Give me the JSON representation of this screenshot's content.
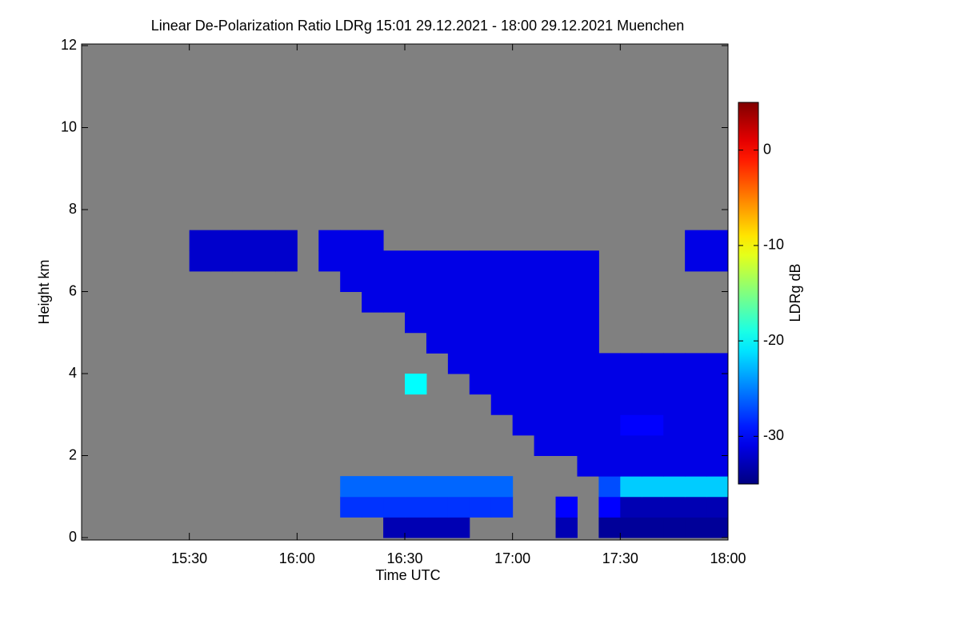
{
  "chart_data": {
    "type": "heatmap",
    "title": "Linear De-Polarization Ratio LDRg   15:01 29.12.2021 - 18:00 29.12.2021 Muenchen",
    "xlabel": "Time UTC",
    "ylabel": "Height km",
    "colorbar_label": "LDRg dB",
    "colorscale": "jet",
    "background_color": "#808080",
    "xlim": [
      15.0,
      18.0
    ],
    "xticks": [
      {
        "value": 15.5,
        "label": "15:30"
      },
      {
        "value": 16.0,
        "label": "16:00"
      },
      {
        "value": 16.5,
        "label": "16:30"
      },
      {
        "value": 17.0,
        "label": "17:00"
      },
      {
        "value": 17.5,
        "label": "17:30"
      },
      {
        "value": 18.0,
        "label": "18:00"
      }
    ],
    "ylim": [
      0,
      12
    ],
    "yticks": [
      0,
      2,
      4,
      6,
      8,
      10,
      12
    ],
    "zlim": [
      -35,
      5
    ],
    "zticks": [
      0,
      -10,
      -20,
      -30
    ],
    "xbins": [
      15.0,
      15.1,
      15.2,
      15.3,
      15.4,
      15.5,
      15.6,
      15.7,
      15.8,
      15.9,
      16.0,
      16.1,
      16.2,
      16.3,
      16.4,
      16.5,
      16.6,
      16.7,
      16.8,
      16.9,
      17.0,
      17.1,
      17.2,
      17.3,
      17.4,
      17.5,
      17.6,
      17.7,
      17.8,
      17.9,
      18.0
    ],
    "ybins": [
      0,
      0.5,
      1,
      1.5,
      2,
      2.5,
      3,
      3.5,
      4,
      4.5,
      5,
      5.5,
      6,
      6.5,
      7,
      7.5,
      8,
      8.5,
      9,
      9.5,
      10,
      10.5,
      11,
      11.5,
      12
    ],
    "z": [
      [
        null,
        null,
        null,
        null,
        null,
        null,
        null,
        null,
        null,
        null,
        null,
        null,
        null,
        null,
        -33,
        -33,
        -33,
        -33,
        null,
        null,
        null,
        null,
        -33,
        null,
        -34,
        -34,
        -34,
        -34,
        -34,
        -34
      ],
      [
        null,
        null,
        null,
        null,
        null,
        null,
        null,
        null,
        null,
        null,
        null,
        null,
        -28,
        -28,
        -28,
        -28,
        -28,
        -28,
        -28,
        -28,
        null,
        null,
        -30,
        null,
        -30,
        -33,
        -33,
        -33,
        -33,
        -33
      ],
      [
        null,
        null,
        null,
        null,
        null,
        null,
        null,
        null,
        null,
        null,
        null,
        null,
        -26,
        -26,
        -26,
        -26,
        -26,
        -26,
        -26,
        -26,
        null,
        null,
        null,
        null,
        -27,
        -22,
        -22,
        -22,
        -22,
        -22
      ],
      [
        null,
        null,
        null,
        null,
        null,
        null,
        null,
        null,
        null,
        null,
        null,
        null,
        null,
        null,
        null,
        null,
        null,
        null,
        null,
        null,
        null,
        null,
        null,
        -31,
        -31,
        -31,
        -31,
        -31,
        -31,
        -31
      ],
      [
        null,
        null,
        null,
        null,
        null,
        null,
        null,
        null,
        null,
        null,
        null,
        null,
        null,
        null,
        null,
        null,
        null,
        null,
        null,
        null,
        null,
        -31,
        -31,
        -31,
        -31,
        -31,
        -31,
        -31,
        -31,
        -31
      ],
      [
        null,
        null,
        null,
        null,
        null,
        null,
        null,
        null,
        null,
        null,
        null,
        null,
        null,
        null,
        null,
        null,
        null,
        null,
        null,
        null,
        -31,
        -31,
        -31,
        -31,
        -31,
        -30,
        -30,
        -31,
        -31,
        -31
      ],
      [
        null,
        null,
        null,
        null,
        null,
        null,
        null,
        null,
        null,
        null,
        null,
        null,
        null,
        null,
        null,
        null,
        null,
        null,
        null,
        -31,
        -31,
        -31,
        -31,
        -31,
        -31,
        -31,
        -31,
        -31,
        -31,
        -31
      ],
      [
        null,
        null,
        null,
        null,
        null,
        null,
        null,
        null,
        null,
        null,
        null,
        null,
        null,
        null,
        null,
        -20,
        null,
        null,
        -31,
        -31,
        -31,
        -31,
        -31,
        -31,
        -31,
        -31,
        -31,
        -31,
        -31,
        -31
      ],
      [
        null,
        null,
        null,
        null,
        null,
        null,
        null,
        null,
        null,
        null,
        null,
        null,
        null,
        null,
        null,
        null,
        null,
        -31,
        -31,
        -31,
        -31,
        -31,
        -31,
        -31,
        -31,
        -31,
        -31,
        -31,
        -31,
        -31
      ],
      [
        null,
        null,
        null,
        null,
        null,
        null,
        null,
        null,
        null,
        null,
        null,
        null,
        null,
        null,
        null,
        null,
        -31,
        -31,
        -31,
        -31,
        -31,
        -31,
        -31,
        -31,
        null,
        null,
        null,
        null,
        null,
        null
      ],
      [
        null,
        null,
        null,
        null,
        null,
        null,
        null,
        null,
        null,
        null,
        null,
        null,
        null,
        null,
        null,
        -31,
        -31,
        -31,
        -31,
        -31,
        -31,
        -31,
        -31,
        -31,
        null,
        null,
        null,
        null,
        null,
        null
      ],
      [
        null,
        null,
        null,
        null,
        null,
        null,
        null,
        null,
        null,
        null,
        null,
        null,
        null,
        -31,
        -31,
        -31,
        -31,
        -31,
        -31,
        -31,
        -31,
        -31,
        -31,
        -31,
        null,
        null,
        null,
        null,
        null,
        null
      ],
      [
        null,
        null,
        null,
        null,
        null,
        null,
        null,
        null,
        null,
        null,
        null,
        null,
        -31,
        -31,
        -31,
        -31,
        -31,
        -31,
        -31,
        -31,
        -31,
        -31,
        -31,
        -31,
        null,
        null,
        null,
        null,
        null,
        null
      ],
      [
        null,
        null,
        null,
        null,
        null,
        -32,
        -32,
        -32,
        -32,
        -32,
        null,
        -31,
        -31,
        -31,
        -31,
        -31,
        -31,
        -31,
        -31,
        -31,
        -31,
        -31,
        -31,
        -31,
        null,
        null,
        null,
        null,
        -31,
        -31
      ],
      [
        null,
        null,
        null,
        null,
        null,
        -32,
        -32,
        -32,
        -32,
        -32,
        null,
        -31,
        -31,
        -31,
        null,
        null,
        null,
        null,
        null,
        null,
        null,
        null,
        null,
        null,
        null,
        null,
        null,
        null,
        -31,
        -31
      ],
      [
        null,
        null,
        null,
        null,
        null,
        null,
        null,
        null,
        null,
        null,
        null,
        null,
        null,
        null,
        null,
        null,
        null,
        null,
        null,
        null,
        null,
        null,
        null,
        null,
        null,
        null,
        null,
        null,
        null,
        null
      ],
      [
        null,
        null,
        null,
        null,
        null,
        null,
        null,
        null,
        null,
        null,
        null,
        null,
        null,
        null,
        null,
        null,
        null,
        null,
        null,
        null,
        null,
        null,
        null,
        null,
        null,
        null,
        null,
        null,
        null,
        null
      ],
      [
        null,
        null,
        null,
        null,
        null,
        null,
        null,
        null,
        null,
        null,
        null,
        null,
        null,
        null,
        null,
        null,
        null,
        null,
        null,
        null,
        null,
        null,
        null,
        null,
        null,
        null,
        null,
        null,
        null,
        null
      ],
      [
        null,
        null,
        null,
        null,
        null,
        null,
        null,
        null,
        null,
        null,
        null,
        null,
        null,
        null,
        null,
        null,
        null,
        null,
        null,
        null,
        null,
        null,
        null,
        null,
        null,
        null,
        null,
        null,
        null,
        null
      ],
      [
        null,
        null,
        null,
        null,
        null,
        null,
        null,
        null,
        null,
        null,
        null,
        null,
        null,
        null,
        null,
        null,
        null,
        null,
        null,
        null,
        null,
        null,
        null,
        null,
        null,
        null,
        null,
        null,
        null,
        null
      ],
      [
        null,
        null,
        null,
        null,
        null,
        null,
        null,
        null,
        null,
        null,
        null,
        null,
        null,
        null,
        null,
        null,
        null,
        null,
        null,
        null,
        null,
        null,
        null,
        null,
        null,
        null,
        null,
        null,
        null,
        null
      ],
      [
        null,
        null,
        null,
        null,
        null,
        null,
        null,
        null,
        null,
        null,
        null,
        null,
        null,
        null,
        null,
        null,
        null,
        null,
        null,
        null,
        null,
        null,
        null,
        null,
        null,
        null,
        null,
        null,
        null,
        null
      ],
      [
        null,
        null,
        null,
        null,
        null,
        null,
        null,
        null,
        null,
        null,
        null,
        null,
        null,
        null,
        null,
        null,
        null,
        null,
        null,
        null,
        null,
        null,
        null,
        null,
        null,
        null,
        null,
        null,
        null,
        null
      ],
      [
        null,
        null,
        null,
        null,
        null,
        null,
        null,
        null,
        null,
        null,
        null,
        null,
        null,
        null,
        null,
        null,
        null,
        null,
        null,
        null,
        null,
        null,
        null,
        null,
        null,
        null,
        null,
        null,
        null,
        null
      ]
    ]
  }
}
